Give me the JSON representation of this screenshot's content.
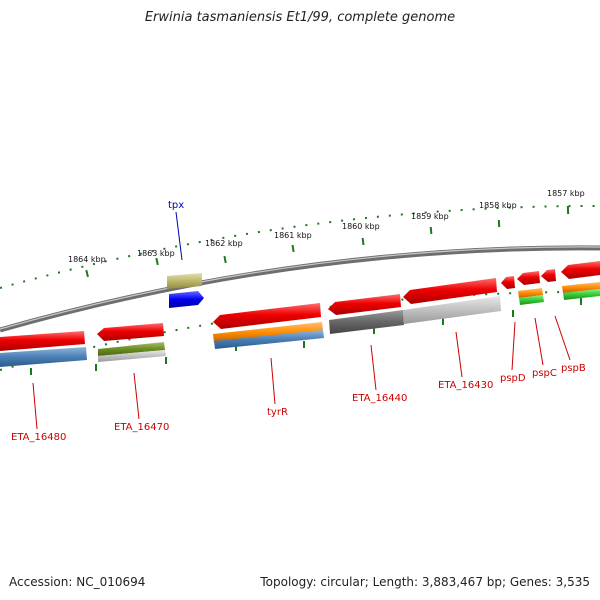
{
  "title": "Erwinia tasmaniensis Et1/99, complete genome",
  "footer": {
    "accession": "Accession: NC_010694",
    "summary": "Topology: circular; Length: 3,883,467 bp; Genes: 3,535"
  },
  "colors": {
    "gene_label": "#cc0000",
    "highlight_label": "#0000aa",
    "backbone": "#8a8a8a",
    "ticks": "#1a7a1a"
  },
  "ruler": [
    {
      "label": "1864 kbp"
    },
    {
      "label": "1863 kbp"
    },
    {
      "label": "1862 kbp"
    },
    {
      "label": "1861 kbp"
    },
    {
      "label": "1860 kbp"
    },
    {
      "label": "1859 kbp"
    },
    {
      "label": "1858 kbp"
    },
    {
      "label": "1857 kbp"
    }
  ],
  "genes": [
    {
      "label": "ETA_16480"
    },
    {
      "label": "ETA_16470"
    },
    {
      "label": "tpx"
    },
    {
      "label": "tyrR"
    },
    {
      "label": "ETA_16440"
    },
    {
      "label": "ETA_16430"
    },
    {
      "label": "pspD"
    },
    {
      "label": "pspC"
    },
    {
      "label": "pspB"
    }
  ]
}
